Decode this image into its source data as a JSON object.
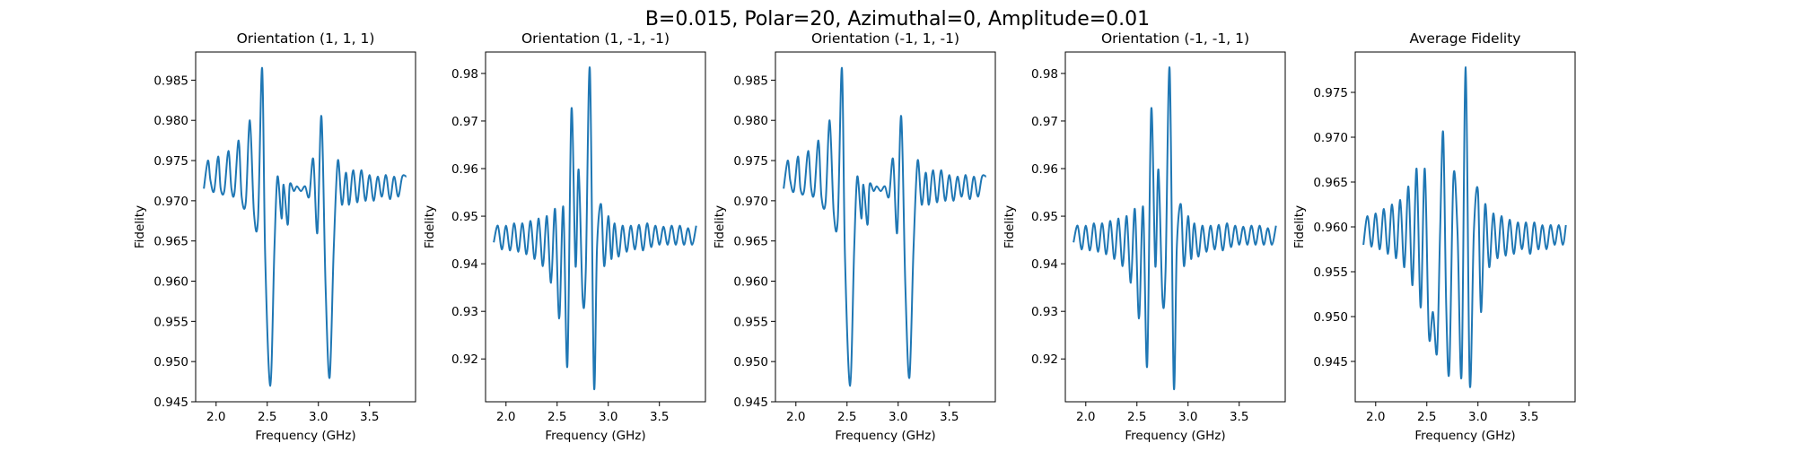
{
  "figure": {
    "suptitle": "B=0.015, Polar=20, Azimuthal=0, Amplitude=0.01"
  },
  "chart_data": [
    {
      "type": "line",
      "title": "Orientation (1, 1, 1)",
      "xlabel": "Frequency (GHz)",
      "ylabel": "Fidelity",
      "xlim": [
        1.8,
        3.95
      ],
      "ylim": [
        0.945,
        0.9885
      ],
      "xticks": [
        2.0,
        2.5,
        3.0,
        3.5
      ],
      "xtick_labels": [
        "2.0",
        "2.5",
        "3.0",
        "3.5"
      ],
      "yticks": [
        0.945,
        0.95,
        0.955,
        0.96,
        0.965,
        0.97,
        0.975,
        0.98,
        0.985
      ],
      "ytick_labels": [
        "0.945",
        "0.950",
        "0.955",
        "0.960",
        "0.965",
        "0.970",
        "0.975",
        "0.980",
        "0.985"
      ],
      "series": [
        {
          "color": "#1f77b4",
          "x": [
            1.88,
            1.92,
            1.945,
            1.98,
            2.02,
            2.045,
            2.08,
            2.12,
            2.15,
            2.18,
            2.22,
            2.25,
            2.29,
            2.33,
            2.37,
            2.41,
            2.45,
            2.48,
            2.53,
            2.57,
            2.6,
            2.64,
            2.66,
            2.7,
            2.72,
            2.76,
            2.79,
            2.83,
            2.87,
            2.91,
            2.95,
            2.99,
            3.03,
            3.07,
            3.11,
            3.15,
            3.19,
            3.23,
            3.27,
            3.3,
            3.34,
            3.38,
            3.42,
            3.46,
            3.5,
            3.54,
            3.58,
            3.62,
            3.66,
            3.7,
            3.74,
            3.78,
            3.82,
            3.86
          ],
          "y": [
            0.9715,
            0.975,
            0.9725,
            0.9712,
            0.9755,
            0.9715,
            0.9712,
            0.9762,
            0.9715,
            0.971,
            0.9775,
            0.9705,
            0.9698,
            0.98,
            0.9685,
            0.9678,
            0.9865,
            0.963,
            0.947,
            0.964,
            0.973,
            0.9678,
            0.972,
            0.967,
            0.972,
            0.9712,
            0.9718,
            0.9712,
            0.9718,
            0.9705,
            0.9752,
            0.966,
            0.9805,
            0.9595,
            0.948,
            0.964,
            0.975,
            0.9695,
            0.9735,
            0.9695,
            0.9738,
            0.9698,
            0.9738,
            0.97,
            0.9732,
            0.97,
            0.973,
            0.9705,
            0.9732,
            0.9702,
            0.973,
            0.9705,
            0.973,
            0.973
          ]
        }
      ]
    },
    {
      "type": "line",
      "title": "Orientation (1, -1, -1)",
      "xlabel": "Frequency (GHz)",
      "ylabel": "Fidelity",
      "xlim": [
        1.8,
        3.95
      ],
      "ylim": [
        0.911,
        0.9845
      ],
      "xticks": [
        2.0,
        2.5,
        3.0,
        3.5
      ],
      "xtick_labels": [
        "2.0",
        "2.5",
        "3.0",
        "3.5"
      ],
      "yticks": [
        0.92,
        0.93,
        0.94,
        0.95,
        0.96,
        0.97,
        0.98
      ],
      "ytick_labels": [
        "0.92",
        "0.93",
        "0.94",
        "0.95",
        "0.96",
        "0.97",
        "0.98"
      ],
      "series": [
        {
          "color": "#1f77b4",
          "x": [
            1.88,
            1.92,
            1.96,
            2.0,
            2.04,
            2.08,
            2.12,
            2.16,
            2.2,
            2.24,
            2.28,
            2.32,
            2.36,
            2.4,
            2.44,
            2.48,
            2.52,
            2.56,
            2.6,
            2.64,
            2.68,
            2.71,
            2.75,
            2.78,
            2.82,
            2.86,
            2.89,
            2.93,
            2.96,
            3.0,
            3.03,
            3.06,
            3.1,
            3.14,
            3.18,
            3.22,
            3.26,
            3.3,
            3.34,
            3.38,
            3.42,
            3.46,
            3.5,
            3.54,
            3.58,
            3.62,
            3.66,
            3.7,
            3.74,
            3.78,
            3.82,
            3.86
          ],
          "y": [
            0.9445,
            0.948,
            0.943,
            0.948,
            0.9428,
            0.9485,
            0.9425,
            0.9485,
            0.942,
            0.949,
            0.941,
            0.9495,
            0.9395,
            0.95,
            0.936,
            0.9515,
            0.9285,
            0.952,
            0.9185,
            0.9725,
            0.9395,
            0.9598,
            0.9325,
            0.9385,
            0.981,
            0.9145,
            0.9435,
            0.9525,
            0.9395,
            0.95,
            0.941,
            0.9485,
            0.9415,
            0.948,
            0.9425,
            0.948,
            0.943,
            0.9482,
            0.9428,
            0.9485,
            0.9435,
            0.948,
            0.944,
            0.9478,
            0.944,
            0.948,
            0.944,
            0.948,
            0.944,
            0.9475,
            0.944,
            0.948
          ]
        }
      ]
    },
    {
      "type": "line",
      "title": "Orientation (-1, 1, -1)",
      "xlabel": "Frequency (GHz)",
      "ylabel": "Fidelity",
      "xlim": [
        1.8,
        3.95
      ],
      "ylim": [
        0.945,
        0.9885
      ],
      "xticks": [
        2.0,
        2.5,
        3.0,
        3.5
      ],
      "xtick_labels": [
        "2.0",
        "2.5",
        "3.0",
        "3.5"
      ],
      "yticks": [
        0.945,
        0.95,
        0.955,
        0.96,
        0.965,
        0.97,
        0.975,
        0.98,
        0.985
      ],
      "ytick_labels": [
        "0.945",
        "0.950",
        "0.955",
        "0.960",
        "0.965",
        "0.970",
        "0.975",
        "0.980",
        "0.985"
      ],
      "series": [
        {
          "color": "#1f77b4",
          "x": [
            1.88,
            1.92,
            1.945,
            1.98,
            2.02,
            2.045,
            2.08,
            2.12,
            2.15,
            2.18,
            2.22,
            2.25,
            2.29,
            2.33,
            2.37,
            2.41,
            2.45,
            2.48,
            2.53,
            2.57,
            2.6,
            2.64,
            2.66,
            2.7,
            2.72,
            2.76,
            2.79,
            2.83,
            2.87,
            2.91,
            2.95,
            2.99,
            3.03,
            3.07,
            3.11,
            3.15,
            3.19,
            3.23,
            3.27,
            3.3,
            3.34,
            3.38,
            3.42,
            3.46,
            3.5,
            3.54,
            3.58,
            3.62,
            3.66,
            3.7,
            3.74,
            3.78,
            3.82,
            3.86
          ],
          "y": [
            0.9715,
            0.975,
            0.9725,
            0.9712,
            0.9755,
            0.9715,
            0.9712,
            0.9762,
            0.9715,
            0.971,
            0.9775,
            0.9705,
            0.9698,
            0.98,
            0.9685,
            0.9678,
            0.9865,
            0.963,
            0.947,
            0.964,
            0.973,
            0.9678,
            0.972,
            0.967,
            0.972,
            0.9712,
            0.9718,
            0.9712,
            0.9718,
            0.9705,
            0.9752,
            0.966,
            0.9805,
            0.9595,
            0.948,
            0.964,
            0.975,
            0.9695,
            0.9735,
            0.9695,
            0.9738,
            0.9698,
            0.9738,
            0.97,
            0.9732,
            0.97,
            0.973,
            0.9705,
            0.9732,
            0.9702,
            0.973,
            0.9705,
            0.973,
            0.973
          ]
        }
      ]
    },
    {
      "type": "line",
      "title": "Orientation (-1, -1, 1)",
      "xlabel": "Frequency (GHz)",
      "ylabel": "Fidelity",
      "xlim": [
        1.8,
        3.95
      ],
      "ylim": [
        0.911,
        0.9845
      ],
      "xticks": [
        2.0,
        2.5,
        3.0,
        3.5
      ],
      "xtick_labels": [
        "2.0",
        "2.5",
        "3.0",
        "3.5"
      ],
      "yticks": [
        0.92,
        0.93,
        0.94,
        0.95,
        0.96,
        0.97,
        0.98
      ],
      "ytick_labels": [
        "0.92",
        "0.93",
        "0.94",
        "0.95",
        "0.96",
        "0.97",
        "0.98"
      ],
      "series": [
        {
          "color": "#1f77b4",
          "x": [
            1.88,
            1.92,
            1.96,
            2.0,
            2.04,
            2.08,
            2.12,
            2.16,
            2.2,
            2.24,
            2.28,
            2.32,
            2.36,
            2.4,
            2.44,
            2.48,
            2.52,
            2.56,
            2.6,
            2.64,
            2.68,
            2.71,
            2.75,
            2.78,
            2.82,
            2.86,
            2.89,
            2.93,
            2.96,
            3.0,
            3.03,
            3.06,
            3.1,
            3.14,
            3.18,
            3.22,
            3.26,
            3.3,
            3.34,
            3.38,
            3.42,
            3.46,
            3.5,
            3.54,
            3.58,
            3.62,
            3.66,
            3.7,
            3.74,
            3.78,
            3.82,
            3.86
          ],
          "y": [
            0.9445,
            0.948,
            0.943,
            0.948,
            0.9428,
            0.9485,
            0.9425,
            0.9485,
            0.942,
            0.949,
            0.941,
            0.9495,
            0.9395,
            0.95,
            0.936,
            0.9515,
            0.9285,
            0.952,
            0.9185,
            0.9725,
            0.9395,
            0.9598,
            0.9325,
            0.9385,
            0.981,
            0.9145,
            0.9435,
            0.9525,
            0.9395,
            0.95,
            0.941,
            0.9485,
            0.9415,
            0.948,
            0.9425,
            0.948,
            0.943,
            0.9482,
            0.9428,
            0.9485,
            0.9435,
            0.948,
            0.944,
            0.9478,
            0.944,
            0.948,
            0.944,
            0.948,
            0.944,
            0.9475,
            0.944,
            0.948
          ]
        }
      ]
    },
    {
      "type": "line",
      "title": "Average Fidelity",
      "xlabel": "Frequency (GHz)",
      "ylabel": "Fidelity",
      "xlim": [
        1.8,
        3.95
      ],
      "ylim": [
        0.9405,
        0.9795
      ],
      "xticks": [
        2.0,
        2.5,
        3.0,
        3.5
      ],
      "xtick_labels": [
        "2.0",
        "2.5",
        "3.0",
        "3.5"
      ],
      "yticks": [
        0.945,
        0.95,
        0.955,
        0.96,
        0.965,
        0.97,
        0.975
      ],
      "ytick_labels": [
        "0.945",
        "0.950",
        "0.955",
        "0.960",
        "0.965",
        "0.970",
        "0.975"
      ],
      "series": [
        {
          "color": "#1f77b4",
          "x": [
            1.88,
            1.92,
            1.96,
            2.0,
            2.04,
            2.08,
            2.12,
            2.16,
            2.2,
            2.24,
            2.28,
            2.32,
            2.36,
            2.4,
            2.44,
            2.48,
            2.52,
            2.56,
            2.6,
            2.63,
            2.66,
            2.69,
            2.72,
            2.76,
            2.8,
            2.84,
            2.88,
            2.92,
            2.96,
            3.0,
            3.03,
            3.07,
            3.11,
            3.15,
            3.19,
            3.23,
            3.27,
            3.31,
            3.35,
            3.39,
            3.43,
            3.47,
            3.51,
            3.55,
            3.59,
            3.63,
            3.67,
            3.71,
            3.75,
            3.79,
            3.83,
            3.86
          ],
          "y": [
            0.958,
            0.9612,
            0.9578,
            0.9615,
            0.9575,
            0.962,
            0.957,
            0.9625,
            0.9565,
            0.963,
            0.9555,
            0.9645,
            0.9535,
            0.9665,
            0.951,
            0.9665,
            0.948,
            0.9505,
            0.946,
            0.9595,
            0.9705,
            0.951,
            0.944,
            0.9655,
            0.9595,
            0.9435,
            0.9778,
            0.9425,
            0.9595,
            0.964,
            0.9505,
            0.9625,
            0.9555,
            0.9615,
            0.9565,
            0.9612,
            0.9568,
            0.9608,
            0.957,
            0.9605,
            0.9575,
            0.9605,
            0.957,
            0.9605,
            0.9575,
            0.9602,
            0.9575,
            0.9602,
            0.958,
            0.9602,
            0.958,
            0.9602
          ]
        }
      ]
    }
  ]
}
